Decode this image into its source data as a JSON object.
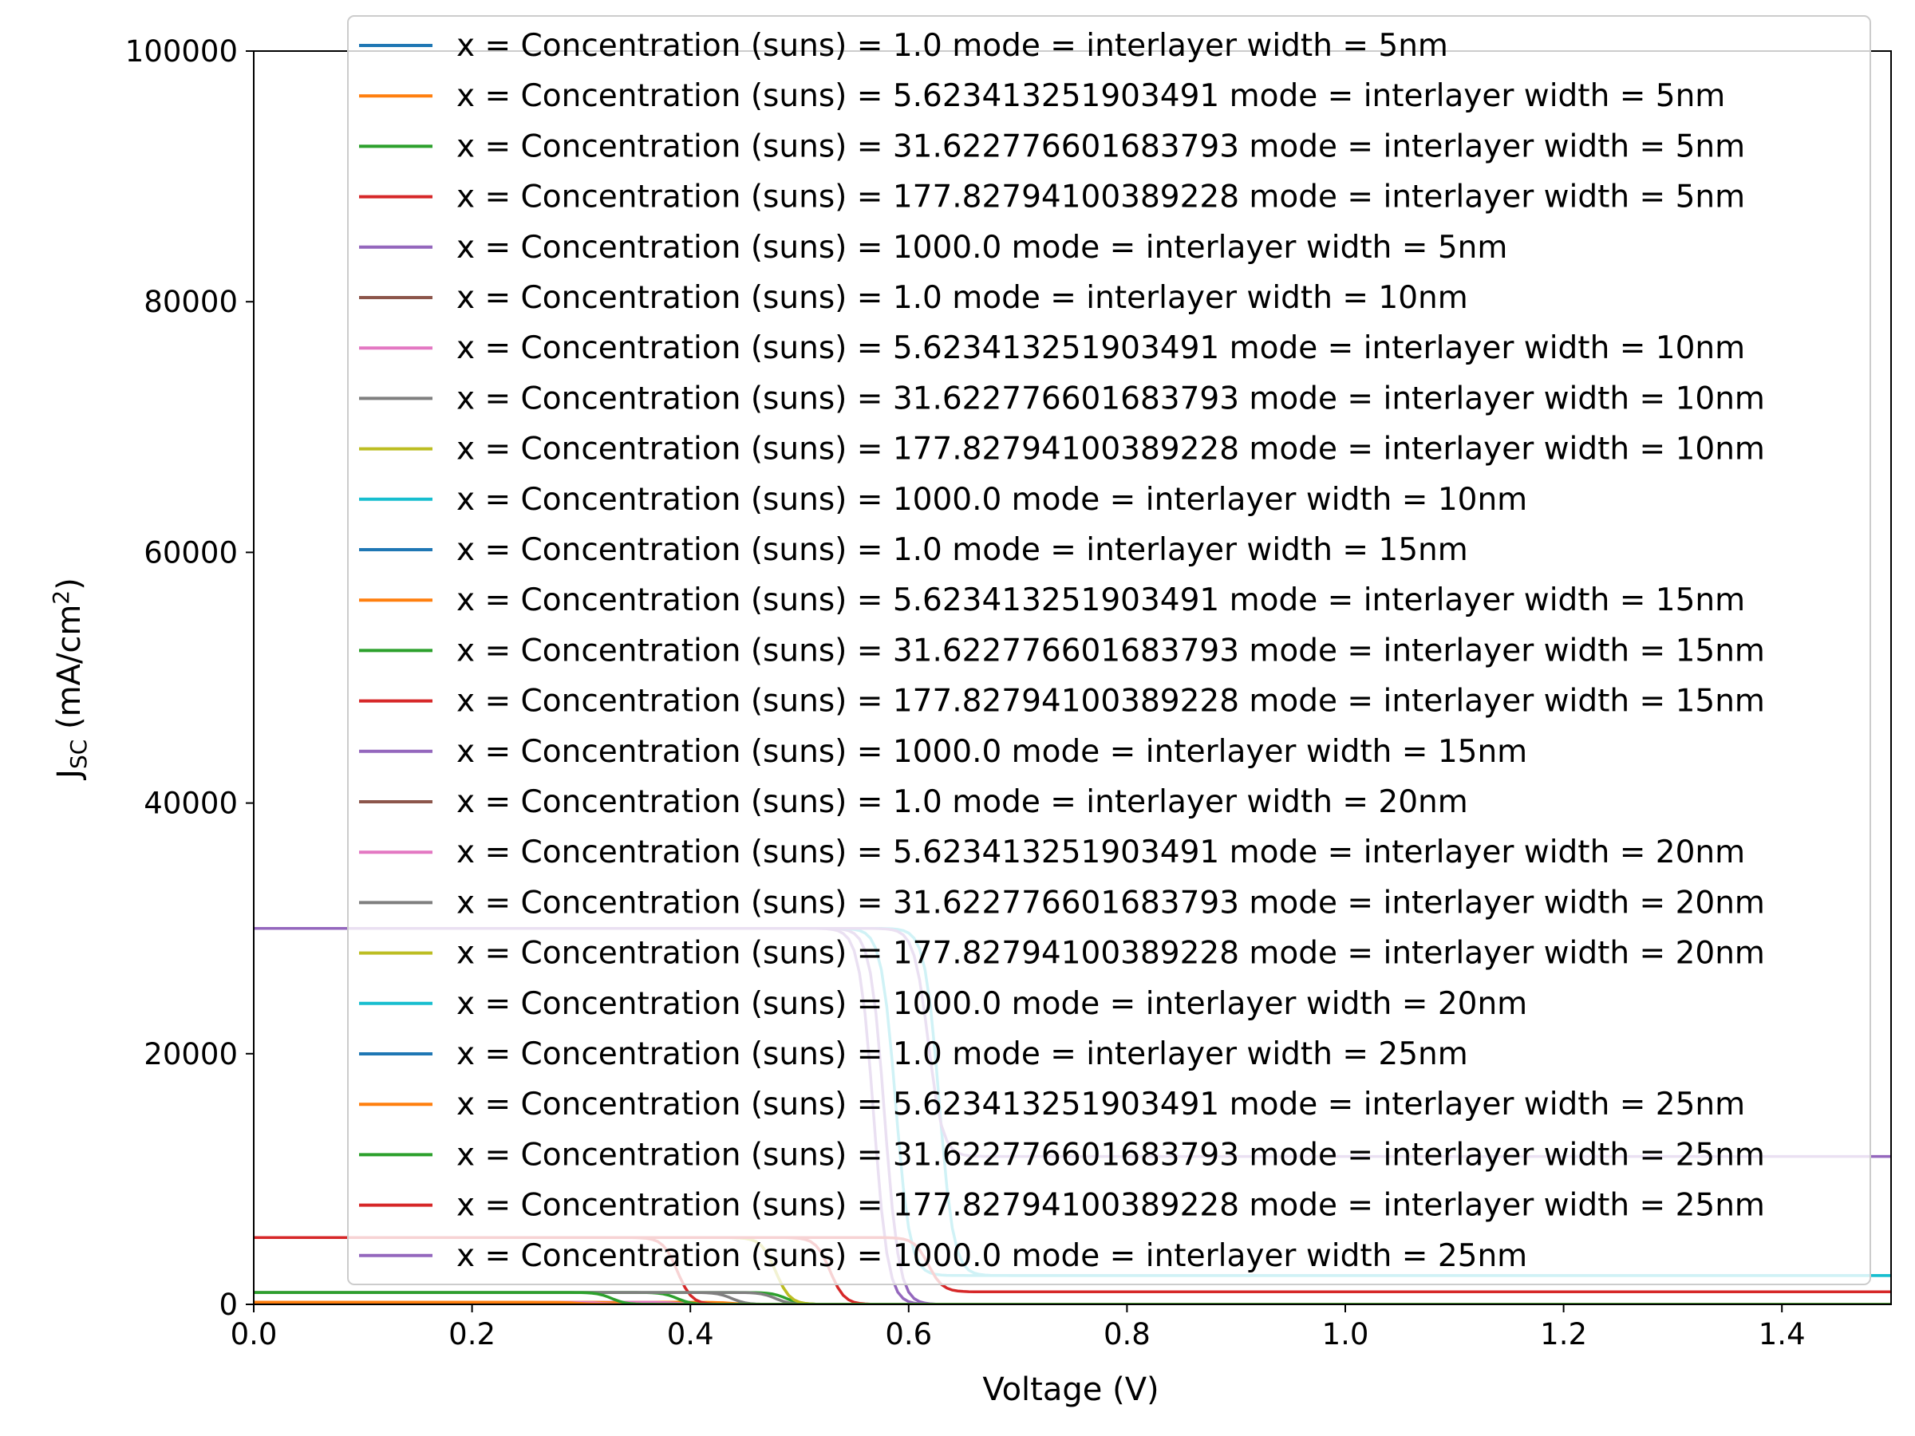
{
  "chart_data": {
    "type": "line",
    "title": "",
    "xlabel": "Voltage (V)",
    "ylabel": {
      "main": "J",
      "sub": "SC",
      "unit_pre": " (mA/cm",
      "unit_sup": "2",
      "unit_post": ")"
    },
    "xlim": [
      0.0,
      1.5
    ],
    "ylim": [
      0,
      100000
    ],
    "x_ticks": [
      0.0,
      0.2,
      0.4,
      0.6,
      0.8,
      1.0,
      1.2,
      1.4
    ],
    "x_tick_labels": [
      "0.0",
      "0.2",
      "0.4",
      "0.6",
      "0.8",
      "1.0",
      "1.2",
      "1.4"
    ],
    "y_ticks": [
      0,
      20000,
      40000,
      60000,
      80000,
      100000
    ],
    "y_tick_labels": [
      "0",
      "20000",
      "40000",
      "60000",
      "80000",
      "100000"
    ],
    "grid": false,
    "legend_position": "top-right",
    "series": [
      {
        "name": "x = Concentration (suns) = 1.0 mode = interlayer width = 5nm",
        "color": "#1f77b4",
        "jsc": 30,
        "voc": 0.4,
        "post": 0
      },
      {
        "name": "x = Concentration (suns) = 5.623413251903491 mode = interlayer width = 5nm",
        "color": "#ff7f0e",
        "jsc": 169,
        "voc": 0.45,
        "post": 0
      },
      {
        "name": "x = Concentration (suns) = 31.622776601683793 mode = interlayer width = 5nm",
        "color": "#2ca02c",
        "jsc": 949,
        "voc": 0.5,
        "post": 0
      },
      {
        "name": "x = Concentration (suns) = 177.82794100389228 mode = interlayer width = 5nm",
        "color": "#d62728",
        "jsc": 5335,
        "voc": 0.54,
        "post": 0
      },
      {
        "name": "x = Concentration (suns) = 1000.0 mode = interlayer width = 5nm",
        "color": "#9467bd",
        "jsc": 30000,
        "voc": 0.59,
        "post": 0
      },
      {
        "name": "x = Concentration (suns) = 1.0 mode = interlayer width = 10nm",
        "color": "#8c564b",
        "jsc": 30,
        "voc": 0.34,
        "post": 0
      },
      {
        "name": "x = Concentration (suns) = 5.623413251903491 mode = interlayer width = 10nm",
        "color": "#e377c2",
        "jsc": 169,
        "voc": 0.4,
        "post": 0
      },
      {
        "name": "x = Concentration (suns) = 31.622776601683793 mode = interlayer width = 10nm",
        "color": "#7f7f7f",
        "jsc": 949,
        "voc": 0.45,
        "post": 0
      },
      {
        "name": "x = Concentration (suns) = 177.82794100389228 mode = interlayer width = 10nm",
        "color": "#bcbd22",
        "jsc": 5335,
        "voc": 0.49,
        "post": 0
      },
      {
        "name": "x = Concentration (suns) = 1000.0 mode = interlayer width = 10nm",
        "color": "#17becf",
        "jsc": 30000,
        "voc": 0.6,
        "post": 2300
      },
      {
        "name": "x = Concentration (suns) = 1.0 mode = interlayer width = 15nm",
        "color": "#1f77b4",
        "jsc": 30,
        "voc": 0.3,
        "post": 0
      },
      {
        "name": "x = Concentration (suns) = 5.623413251903491 mode = interlayer width = 15nm",
        "color": "#ff7f0e",
        "jsc": 169,
        "voc": 0.35,
        "post": 0
      },
      {
        "name": "x = Concentration (suns) = 31.622776601683793 mode = interlayer width = 15nm",
        "color": "#2ca02c",
        "jsc": 949,
        "voc": 0.4,
        "post": 0
      },
      {
        "name": "x = Concentration (suns) = 177.82794100389228 mode = interlayer width = 15nm",
        "color": "#d62728",
        "jsc": 5335,
        "voc": 0.4,
        "post": 0
      },
      {
        "name": "x = Concentration (suns) = 1000.0 mode = interlayer width = 15nm",
        "color": "#9467bd",
        "jsc": 30000,
        "voc": 0.58,
        "post": 0
      },
      {
        "name": "x = Concentration (suns) = 1.0 mode = interlayer width = 20nm",
        "color": "#8c564b",
        "jsc": 30,
        "voc": 0.28,
        "post": 0
      },
      {
        "name": "x = Concentration (suns) = 5.623413251903491 mode = interlayer width = 20nm",
        "color": "#e377c2",
        "jsc": 169,
        "voc": 0.33,
        "post": 0
      },
      {
        "name": "x = Concentration (suns) = 31.622776601683793 mode = interlayer width = 20nm",
        "color": "#7f7f7f",
        "jsc": 949,
        "voc": 0.49,
        "post": 0
      },
      {
        "name": "x = Concentration (suns) = 177.82794100389228 mode = interlayer width = 20nm",
        "color": "#bcbd22",
        "jsc": 5335,
        "voc": 0.49,
        "post": 0
      },
      {
        "name": "x = Concentration (suns) = 1000.0 mode = interlayer width = 20nm",
        "color": "#17becf",
        "jsc": 30000,
        "voc": 0.64,
        "post": 2300
      },
      {
        "name": "x = Concentration (suns) = 1.0 mode = interlayer width = 25nm",
        "color": "#1f77b4",
        "jsc": 30,
        "voc": 0.26,
        "post": 0
      },
      {
        "name": "x = Concentration (suns) = 5.623413251903491 mode = interlayer width = 25nm",
        "color": "#ff7f0e",
        "jsc": 169,
        "voc": 0.31,
        "post": 0
      },
      {
        "name": "x = Concentration (suns) = 31.622776601683793 mode = interlayer width = 25nm",
        "color": "#2ca02c",
        "jsc": 949,
        "voc": 0.34,
        "post": 0
      },
      {
        "name": "x = Concentration (suns) = 177.82794100389228 mode = interlayer width = 25nm",
        "color": "#d62728",
        "jsc": 5335,
        "voc": 0.63,
        "post": 1000
      },
      {
        "name": "x = Concentration (suns) = 1000.0 mode = interlayer width = 25nm",
        "color": "#9467bd",
        "jsc": 30000,
        "voc": 0.63,
        "post": 11800
      }
    ]
  }
}
